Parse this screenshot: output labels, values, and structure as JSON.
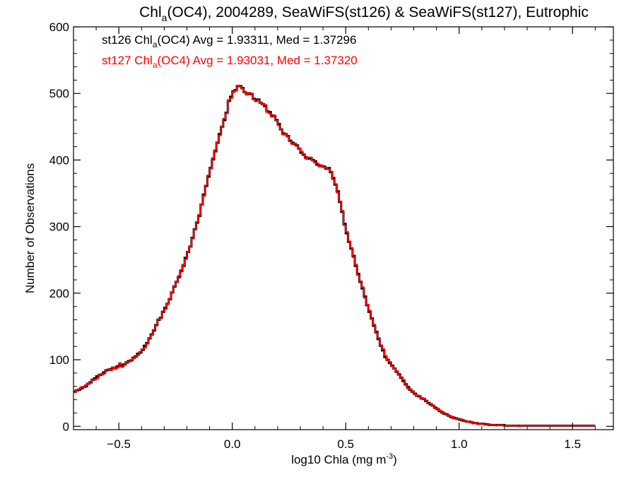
{
  "chart_data": {
    "type": "histogram",
    "title": {
      "main": "Chl",
      "sub": "a",
      "rest": "(OC4), 2004289, SeaWiFS(st126) & SeaWiFS(st127), Eutrophic"
    },
    "xlabel": {
      "main": "log10 Chla (mg m",
      "sup": "-3",
      "end": ")"
    },
    "ylabel": "Number of Observations",
    "xlim": [
      -0.7,
      1.68
    ],
    "ylim": [
      -5,
      600
    ],
    "xticks": [
      -0.5,
      0.0,
      0.5,
      1.0,
      1.5
    ],
    "xtick_labels": [
      "−0.5",
      "0.0",
      "0.5",
      "1.0",
      "1.5"
    ],
    "yticks": [
      0,
      100,
      200,
      300,
      400,
      500,
      600
    ],
    "ytick_labels": [
      "0",
      "100",
      "200",
      "300",
      "400",
      "500",
      "600"
    ],
    "bin_start": -0.7,
    "bin_width": 0.01,
    "legend": [
      {
        "prefix": "st126 Chl",
        "sub": "a",
        "suffix": "(OC4) Avg = 1.93311, Med = 1.37296",
        "color": "#000000"
      },
      {
        "prefix": "st127 Chl",
        "sub": "a",
        "suffix": "(OC4) Avg = 1.93031, Med = 1.37320",
        "color": "#ff0000"
      }
    ],
    "series": [
      {
        "name": "st126",
        "color": "#000000",
        "values": [
          52,
          54,
          55,
          57,
          59,
          60,
          64,
          66,
          70,
          72,
          75,
          77,
          78,
          81,
          84,
          85,
          86,
          88,
          88,
          90,
          92,
          91,
          93,
          96,
          98,
          99,
          103,
          105,
          109,
          111,
          115,
          121,
          125,
          132,
          138,
          144,
          152,
          160,
          163,
          172,
          178,
          184,
          191,
          201,
          210,
          217,
          224,
          233,
          241,
          253,
          262,
          270,
          283,
          296,
          306,
          316,
          333,
          348,
          361,
          375,
          388,
          401,
          413,
          426,
          439,
          450,
          460,
          471,
          489,
          495,
          503,
          505,
          511,
          511,
          508,
          502,
          499,
          500,
          499,
          492,
          490,
          491,
          486,
          484,
          481,
          473,
          472,
          467,
          466,
          460,
          454,
          446,
          440,
          439,
          436,
          429,
          426,
          424,
          422,
          417,
          411,
          408,
          404,
          402,
          403,
          400,
          398,
          393,
          392,
          391,
          390,
          387,
          388,
          382,
          373,
          363,
          353,
          337,
          322,
          304,
          290,
          277,
          267,
          256,
          241,
          229,
          217,
          207,
          195,
          182,
          172,
          162,
          151,
          142,
          131,
          121,
          114,
          104,
          100,
          95,
          91,
          87,
          82,
          78,
          73,
          68,
          63,
          59,
          55,
          52,
          49,
          46,
          45,
          42,
          41,
          38,
          35,
          33,
          31,
          28,
          26,
          23,
          21,
          19,
          18,
          16,
          14,
          13,
          12,
          11,
          10,
          9,
          8,
          7,
          7,
          6,
          5,
          5,
          4,
          4,
          4,
          3,
          3,
          2,
          2,
          2,
          2,
          2,
          2,
          2,
          1,
          1,
          1,
          1,
          1,
          1,
          1,
          1,
          1,
          1,
          1,
          1,
          1,
          1,
          1,
          1,
          1,
          1,
          1,
          1,
          1,
          1,
          1,
          1,
          1,
          1,
          1,
          1,
          1,
          1,
          1,
          1,
          1,
          1,
          1,
          1,
          1,
          1,
          1,
          1
        ]
      },
      {
        "name": "st127",
        "color": "#ff0000",
        "values": [
          51,
          54,
          56,
          59,
          59,
          62,
          64,
          67,
          70,
          70,
          72,
          78,
          78,
          79,
          85,
          86,
          84,
          89,
          86,
          88,
          95,
          89,
          92,
          97,
          97,
          100,
          102,
          104,
          107,
          112,
          116,
          118,
          124,
          133,
          137,
          145,
          151,
          161,
          162,
          173,
          176,
          184,
          192,
          201,
          211,
          217,
          226,
          235,
          243,
          251,
          262,
          270,
          282,
          296,
          307,
          318,
          333,
          346,
          362,
          377,
          387,
          403,
          415,
          427,
          437,
          450,
          462,
          470,
          490,
          493,
          502,
          504,
          512,
          510,
          507,
          502,
          498,
          501,
          500,
          491,
          488,
          490,
          486,
          484,
          483,
          472,
          470,
          465,
          467,
          459,
          452,
          446,
          438,
          439,
          435,
          428,
          424,
          425,
          421,
          417,
          413,
          409,
          402,
          404,
          404,
          399,
          396,
          395,
          390,
          392,
          389,
          388,
          386,
          383,
          371,
          364,
          351,
          338,
          324,
          302,
          292,
          278,
          268,
          254,
          243,
          227,
          218,
          209,
          193,
          183,
          174,
          161,
          153,
          140,
          133,
          122,
          116,
          106,
          99,
          97,
          90,
          87,
          83,
          77,
          74,
          70,
          62,
          57,
          56,
          53,
          48,
          46,
          46,
          41,
          42,
          39,
          34,
          34,
          31,
          27,
          27,
          24,
          20,
          20,
          17,
          16,
          15,
          12,
          11,
          11,
          11,
          8,
          8,
          7,
          6,
          7,
          4,
          5,
          3,
          4,
          4,
          2,
          2,
          3,
          2,
          2,
          1,
          2,
          2,
          1,
          1,
          1,
          1,
          1,
          1,
          1,
          0,
          1,
          1,
          1,
          1,
          1,
          1,
          1,
          1,
          1,
          1,
          1,
          1,
          1,
          1,
          1,
          1,
          1,
          1,
          1,
          1,
          1,
          1,
          1,
          1,
          1,
          1,
          1,
          1,
          1,
          1,
          1,
          1,
          1
        ]
      }
    ]
  }
}
